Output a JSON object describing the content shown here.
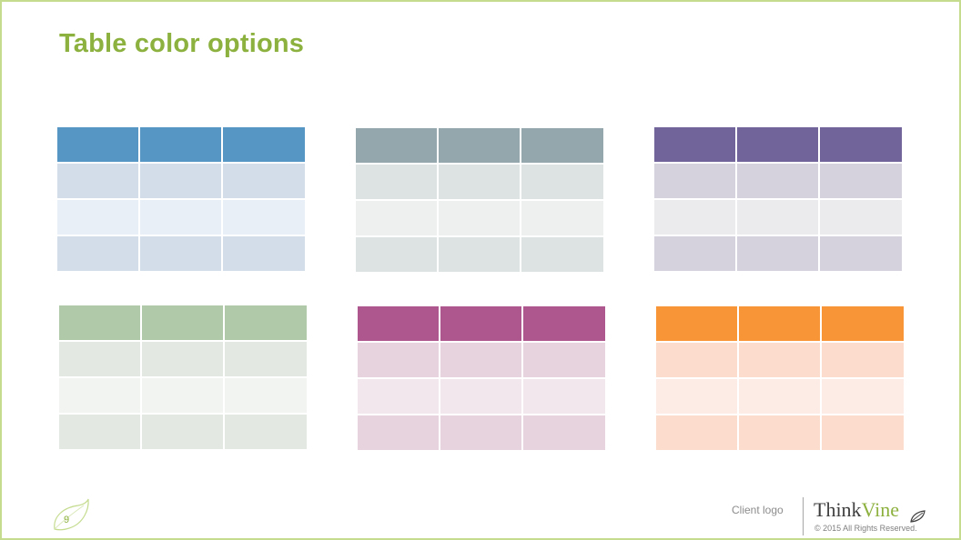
{
  "slide": {
    "title": "Table color options",
    "page_number": "9"
  },
  "tables": [
    {
      "name": "blue",
      "header": "#5596c5",
      "band_a": "#d2dde9",
      "band_b": "#e9eff6"
    },
    {
      "name": "gray",
      "header": "#93a7ad",
      "band_a": "#dde2e2",
      "band_b": "#eef0f0"
    },
    {
      "name": "purple",
      "header": "#71649b",
      "band_a": "#d5d2de",
      "band_b": "#ebebee"
    },
    {
      "name": "green",
      "header": "#b0c9a8",
      "band_a": "#e3e8e2",
      "band_b": "#f1f4f1"
    },
    {
      "name": "magenta",
      "header": "#ad578e",
      "band_a": "#e6d3dd",
      "band_b": "#f3e7ee"
    },
    {
      "name": "orange",
      "header": "#f89536",
      "band_a": "#fbdccd",
      "band_b": "#fcece5"
    }
  ],
  "footer": {
    "client_logo": "Client logo",
    "brand_think": "Think",
    "brand_vine": "Vine",
    "copyright": "© 2015  All Rights Reserved."
  },
  "colors": {
    "accent_green": "#8db13f",
    "frame_border": "#c5dc8f"
  }
}
